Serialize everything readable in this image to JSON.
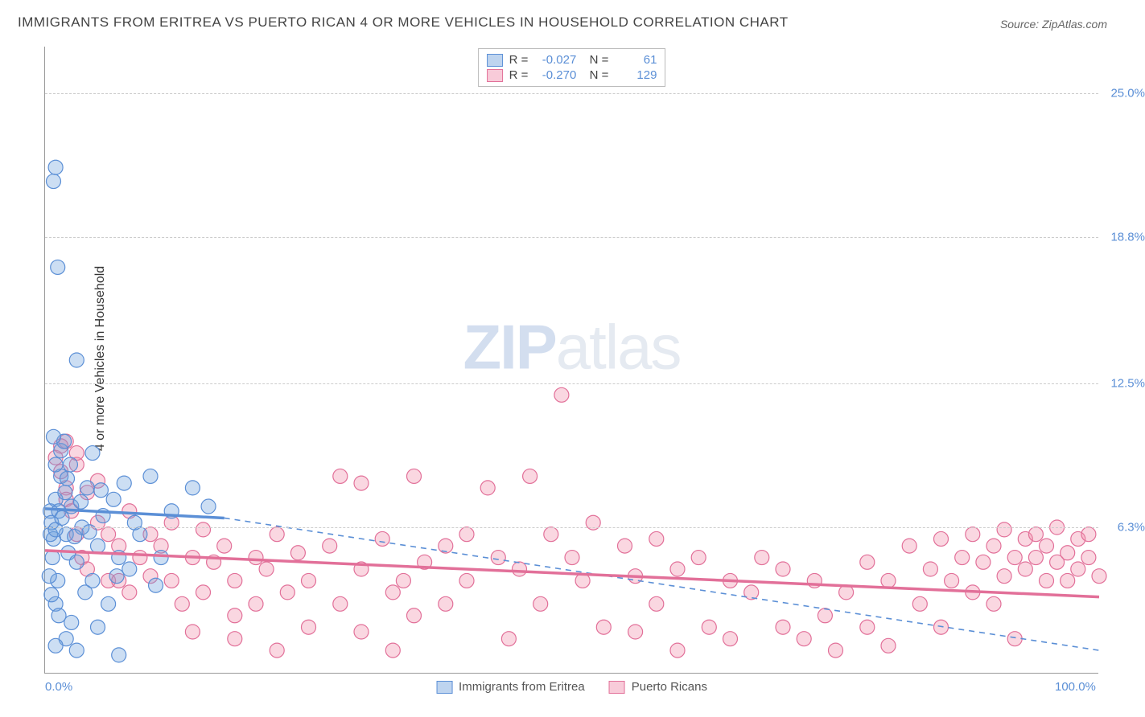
{
  "title": "IMMIGRANTS FROM ERITREA VS PUERTO RICAN 4 OR MORE VEHICLES IN HOUSEHOLD CORRELATION CHART",
  "source_label": "Source:",
  "source_value": "ZipAtlas.com",
  "y_axis_label": "4 or more Vehicles in Household",
  "watermark_a": "ZIP",
  "watermark_b": "atlas",
  "chart": {
    "type": "scatter",
    "xlim": [
      0,
      100
    ],
    "ylim": [
      0,
      27
    ],
    "x_ticks": [
      {
        "v": 0,
        "label": "0.0%"
      },
      {
        "v": 100,
        "label": "100.0%"
      }
    ],
    "y_ticks": [
      {
        "v": 6.3,
        "label": "6.3%"
      },
      {
        "v": 12.5,
        "label": "12.5%"
      },
      {
        "v": 18.8,
        "label": "18.8%"
      },
      {
        "v": 25.0,
        "label": "25.0%"
      }
    ],
    "grid_color": "#cccccc",
    "background_color": "#ffffff",
    "series": [
      {
        "id": "eritrea",
        "label": "Immigrants from Eritrea",
        "color_fill": "rgba(110,160,220,0.35)",
        "color_stroke": "#5b8fd6",
        "marker_radius": 9,
        "R": "-0.027",
        "N": "61",
        "regression": {
          "x1": 0,
          "y1": 7.1,
          "x2": 17,
          "y2": 6.7,
          "solid": true,
          "extend_to": 100,
          "y_extend": 1.0
        },
        "points": [
          [
            0.5,
            7.0
          ],
          [
            0.6,
            6.5
          ],
          [
            0.8,
            5.8
          ],
          [
            1.0,
            7.5
          ],
          [
            1.2,
            4.0
          ],
          [
            1.0,
            3.0
          ],
          [
            1.3,
            2.5
          ],
          [
            1.5,
            8.5
          ],
          [
            1.5,
            9.6
          ],
          [
            1.8,
            10.0
          ],
          [
            0.8,
            10.2
          ],
          [
            1.0,
            9.0
          ],
          [
            2.0,
            6.0
          ],
          [
            2.2,
            5.2
          ],
          [
            2.5,
            7.2
          ],
          [
            3.0,
            4.8
          ],
          [
            3.5,
            6.3
          ],
          [
            3.8,
            3.5
          ],
          [
            4.0,
            8.0
          ],
          [
            4.5,
            4.0
          ],
          [
            4.5,
            9.5
          ],
          [
            5.0,
            5.5
          ],
          [
            5.5,
            6.8
          ],
          [
            6.0,
            3.0
          ],
          [
            6.5,
            7.5
          ],
          [
            7.0,
            5.0
          ],
          [
            7.5,
            8.2
          ],
          [
            8.0,
            4.5
          ],
          [
            9.0,
            6.0
          ],
          [
            10.0,
            8.5
          ],
          [
            11.0,
            5.0
          ],
          [
            12.0,
            7.0
          ],
          [
            14.0,
            8.0
          ],
          [
            15.5,
            7.2
          ],
          [
            2.0,
            1.5
          ],
          [
            3.0,
            1.0
          ],
          [
            7.0,
            0.8
          ],
          [
            5.0,
            2.0
          ],
          [
            2.5,
            2.2
          ],
          [
            1.0,
            1.2
          ],
          [
            1.2,
            17.5
          ],
          [
            0.8,
            21.2
          ],
          [
            1.0,
            21.8
          ],
          [
            3.0,
            13.5
          ],
          [
            0.5,
            6.0
          ],
          [
            0.7,
            5.0
          ],
          [
            1.0,
            6.2
          ],
          [
            1.3,
            7.0
          ],
          [
            1.6,
            6.7
          ],
          [
            1.9,
            7.8
          ],
          [
            2.1,
            8.4
          ],
          [
            2.4,
            9.0
          ],
          [
            0.4,
            4.2
          ],
          [
            0.6,
            3.4
          ],
          [
            2.8,
            5.9
          ],
          [
            3.4,
            7.4
          ],
          [
            4.2,
            6.1
          ],
          [
            5.3,
            7.9
          ],
          [
            6.8,
            4.2
          ],
          [
            8.5,
            6.5
          ],
          [
            10.5,
            3.8
          ]
        ]
      },
      {
        "id": "puerto_rican",
        "label": "Puerto Ricans",
        "color_fill": "rgba(240,140,170,0.35)",
        "color_stroke": "#e27099",
        "marker_radius": 9,
        "R": "-0.270",
        "N": "129",
        "regression": {
          "x1": 0,
          "y1": 5.3,
          "x2": 100,
          "y2": 3.3,
          "solid": true
        },
        "points": [
          [
            1,
            9.3
          ],
          [
            1.5,
            8.7
          ],
          [
            2,
            8.0
          ],
          [
            2,
            7.5
          ],
          [
            2.5,
            7.0
          ],
          [
            3,
            9.0
          ],
          [
            3,
            6.0
          ],
          [
            3.5,
            5.0
          ],
          [
            4,
            7.8
          ],
          [
            4,
            4.5
          ],
          [
            5,
            6.5
          ],
          [
            5,
            8.3
          ],
          [
            6,
            4.0
          ],
          [
            6,
            6.0
          ],
          [
            7,
            5.5
          ],
          [
            7,
            4.0
          ],
          [
            8,
            7.0
          ],
          [
            8,
            3.5
          ],
          [
            9,
            5.0
          ],
          [
            10,
            6.0
          ],
          [
            10,
            4.2
          ],
          [
            11,
            5.5
          ],
          [
            12,
            4.0
          ],
          [
            12,
            6.5
          ],
          [
            13,
            3.0
          ],
          [
            14,
            5.0
          ],
          [
            15,
            6.2
          ],
          [
            15,
            3.5
          ],
          [
            16,
            4.8
          ],
          [
            17,
            5.5
          ],
          [
            18,
            4.0
          ],
          [
            18,
            2.5
          ],
          [
            20,
            5.0
          ],
          [
            20,
            3.0
          ],
          [
            21,
            4.5
          ],
          [
            22,
            6.0
          ],
          [
            23,
            3.5
          ],
          [
            24,
            5.2
          ],
          [
            25,
            4.0
          ],
          [
            25,
            2.0
          ],
          [
            27,
            5.5
          ],
          [
            28,
            8.5
          ],
          [
            28,
            3.0
          ],
          [
            30,
            4.5
          ],
          [
            30,
            8.2
          ],
          [
            32,
            5.8
          ],
          [
            33,
            3.5
          ],
          [
            34,
            4.0
          ],
          [
            35,
            8.5
          ],
          [
            35,
            2.5
          ],
          [
            36,
            4.8
          ],
          [
            38,
            5.5
          ],
          [
            38,
            3.0
          ],
          [
            40,
            6.0
          ],
          [
            40,
            4.0
          ],
          [
            42,
            8.0
          ],
          [
            43,
            5.0
          ],
          [
            44,
            1.5
          ],
          [
            45,
            4.5
          ],
          [
            46,
            8.5
          ],
          [
            47,
            3.0
          ],
          [
            48,
            6.0
          ],
          [
            49,
            12.0
          ],
          [
            50,
            5.0
          ],
          [
            51,
            4.0
          ],
          [
            52,
            6.5
          ],
          [
            53,
            2.0
          ],
          [
            55,
            5.5
          ],
          [
            56,
            4.2
          ],
          [
            58,
            3.0
          ],
          [
            58,
            5.8
          ],
          [
            60,
            1.0
          ],
          [
            60,
            4.5
          ],
          [
            62,
            5.0
          ],
          [
            63,
            2.0
          ],
          [
            65,
            4.0
          ],
          [
            65,
            1.5
          ],
          [
            67,
            3.5
          ],
          [
            68,
            5.0
          ],
          [
            70,
            2.0
          ],
          [
            70,
            4.5
          ],
          [
            72,
            1.5
          ],
          [
            73,
            4.0
          ],
          [
            74,
            2.5
          ],
          [
            75,
            1.0
          ],
          [
            76,
            3.5
          ],
          [
            78,
            4.8
          ],
          [
            78,
            2.0
          ],
          [
            80,
            4.0
          ],
          [
            80,
            1.2
          ],
          [
            82,
            5.5
          ],
          [
            83,
            3.0
          ],
          [
            84,
            4.5
          ],
          [
            85,
            5.8
          ],
          [
            85,
            2.0
          ],
          [
            86,
            4.0
          ],
          [
            87,
            5.0
          ],
          [
            88,
            3.5
          ],
          [
            88,
            6.0
          ],
          [
            89,
            4.8
          ],
          [
            90,
            5.5
          ],
          [
            90,
            3.0
          ],
          [
            91,
            4.2
          ],
          [
            91,
            6.2
          ],
          [
            92,
            5.0
          ],
          [
            92,
            1.5
          ],
          [
            93,
            4.5
          ],
          [
            93,
            5.8
          ],
          [
            94,
            5.0
          ],
          [
            94,
            6.0
          ],
          [
            95,
            4.0
          ],
          [
            95,
            5.5
          ],
          [
            96,
            4.8
          ],
          [
            96,
            6.3
          ],
          [
            97,
            5.2
          ],
          [
            97,
            4.0
          ],
          [
            98,
            5.8
          ],
          [
            98,
            4.5
          ],
          [
            99,
            5.0
          ],
          [
            99,
            6.0
          ],
          [
            100,
            4.2
          ],
          [
            2,
            10.0
          ],
          [
            3,
            9.5
          ],
          [
            1.5,
            9.8
          ],
          [
            14,
            1.8
          ],
          [
            18,
            1.5
          ],
          [
            22,
            1.0
          ],
          [
            30,
            1.8
          ],
          [
            33,
            1.0
          ],
          [
            56,
            1.8
          ]
        ]
      }
    ]
  },
  "legend_bottom": [
    {
      "swatch": "blue",
      "label": "Immigrants from Eritrea"
    },
    {
      "swatch": "pink",
      "label": "Puerto Ricans"
    }
  ]
}
